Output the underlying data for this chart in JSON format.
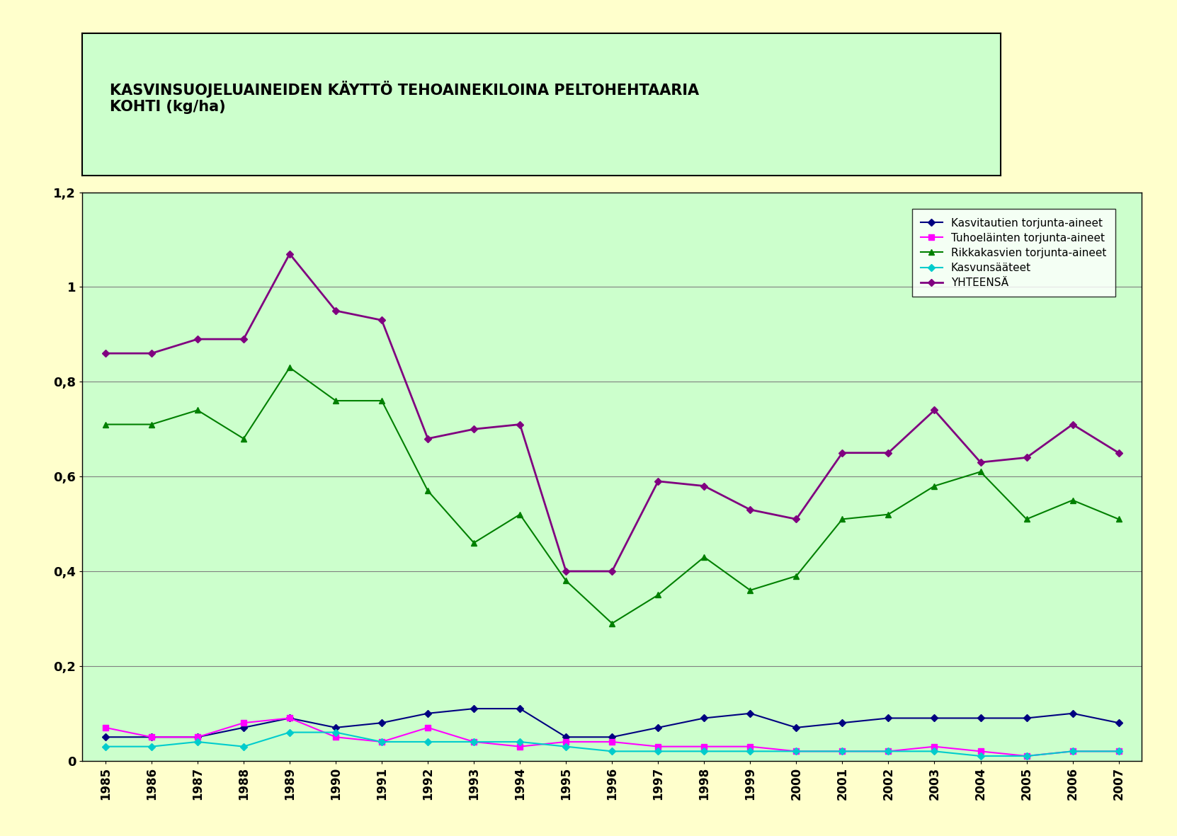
{
  "title_line1": "KASVINSUOJELUAINEIDEN KÄYTTÖ TEHOAINEKILOINA PELTOHEHTAARIA",
  "title_line2": "KOHTI (kg/ha)",
  "years": [
    1985,
    1986,
    1987,
    1988,
    1989,
    1990,
    1991,
    1992,
    1993,
    1994,
    1995,
    1996,
    1997,
    1998,
    1999,
    2000,
    2001,
    2002,
    2003,
    2004,
    2005,
    2006,
    2007
  ],
  "kasvitautien": [
    0.05,
    0.05,
    0.05,
    0.07,
    0.09,
    0.07,
    0.08,
    0.1,
    0.11,
    0.11,
    0.05,
    0.05,
    0.07,
    0.09,
    0.1,
    0.07,
    0.08,
    0.09,
    0.09,
    0.09,
    0.09,
    0.1,
    0.08
  ],
  "tuhoelaeinten": [
    0.07,
    0.05,
    0.05,
    0.08,
    0.09,
    0.05,
    0.04,
    0.07,
    0.04,
    0.03,
    0.04,
    0.04,
    0.03,
    0.03,
    0.03,
    0.02,
    0.02,
    0.02,
    0.03,
    0.02,
    0.01,
    0.02,
    0.02
  ],
  "rikkakasvien": [
    0.71,
    0.71,
    0.74,
    0.68,
    0.83,
    0.76,
    0.76,
    0.57,
    0.46,
    0.52,
    0.38,
    0.29,
    0.35,
    0.43,
    0.36,
    0.39,
    0.51,
    0.52,
    0.58,
    0.61,
    0.51,
    0.55,
    0.51
  ],
  "kasvunsaateet": [
    0.03,
    0.03,
    0.04,
    0.03,
    0.06,
    0.06,
    0.04,
    0.04,
    0.04,
    0.04,
    0.03,
    0.02,
    0.02,
    0.02,
    0.02,
    0.02,
    0.02,
    0.02,
    0.02,
    0.01,
    0.01,
    0.02,
    0.02
  ],
  "yhteensa": [
    0.86,
    0.86,
    0.89,
    0.89,
    1.07,
    0.95,
    0.93,
    0.68,
    0.7,
    0.71,
    0.4,
    0.4,
    0.59,
    0.58,
    0.53,
    0.51,
    0.65,
    0.65,
    0.74,
    0.63,
    0.64,
    0.71,
    0.65
  ],
  "kasvitautien_color": "#000080",
  "tuhoelaeinten_color": "#FF00FF",
  "rikkakasvien_color": "#008000",
  "kasvunsaateet_color": "#00CCCC",
  "yhteensa_color": "#800080",
  "legend_labels": [
    "Kasvitautien torjunta-aineet",
    "Tuhoeläinten torjunta-aineet",
    "Rikkakasvien torjunta-aineet",
    "Kasvunsääteet",
    "YHTEENSÄ"
  ],
  "plot_bg_color": "#CCFFCC",
  "fig_bg_color": "#FFFFCC",
  "title_box_color": "#CCFFCC",
  "ylim": [
    0,
    1.2
  ],
  "yticks": [
    0,
    0.2,
    0.4,
    0.6,
    0.8,
    1.0,
    1.2
  ],
  "ytick_labels": [
    "0",
    "0,2",
    "0,4",
    "0,6",
    "0,8",
    "1",
    "1,2"
  ]
}
